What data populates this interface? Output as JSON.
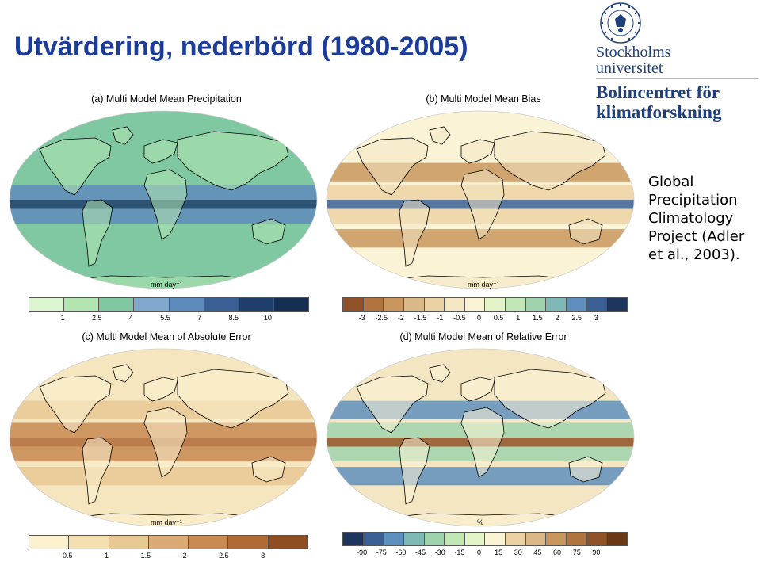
{
  "slide": {
    "title": "Utvärdering, nederbörd (1980-2005)",
    "note": "Global Precipitation Climatology Project (Adler et al., 2003)."
  },
  "logos": {
    "university_lines": [
      "Stockholms",
      "universitet"
    ],
    "center_lines": [
      "Bolincentret för",
      "klimatforskning"
    ],
    "seal_text": "UNIVERSITET STOCKHOLMS"
  },
  "panels": [
    {
      "id": "a",
      "title": "(a) Multi Model Mean Precipitation",
      "unit": "mm day⁻¹",
      "ticks": [
        "1",
        "2.5",
        "4",
        "5.5",
        "7",
        "8.5",
        "10"
      ],
      "colors": [
        "#ddf6d2",
        "#b2e5b0",
        "#7fc8a2",
        "#7fa8cc",
        "#5f8bbc",
        "#3a5f94",
        "#1e3f6c",
        "#152f52"
      ],
      "ocean": "#7fc8a2",
      "land": "#b2e5b0"
    },
    {
      "id": "b",
      "title": "(b) Multi Model Mean Bias",
      "unit": "mm day⁻¹",
      "ticks": [
        "-3",
        "-2.5",
        "-2",
        "-1.5",
        "-1",
        "-0.5",
        "0",
        "0.5",
        "1",
        "1.5",
        "2",
        "2.5",
        "3"
      ],
      "colors": [
        "#8e5128",
        "#b0753f",
        "#c9975e",
        "#dbb887",
        "#ebd2a4",
        "#f4e6c2",
        "#fbf3d6",
        "#e3f4c9",
        "#c2e7b6",
        "#9fd3ad",
        "#7fb9b6",
        "#5f8fbd",
        "#3a5f94",
        "#1d355c"
      ],
      "ocean": "#fbf3d6",
      "land": "#f4e6c2"
    },
    {
      "id": "c",
      "title": "(c) Multi Model Mean of Absolute Error",
      "unit": "mm day⁻¹",
      "ticks": [
        "0.5",
        "1",
        "1.5",
        "2",
        "2.5",
        "3"
      ],
      "colors": [
        "#fbf1cf",
        "#f3dfb0",
        "#e8c893",
        "#d9aa72",
        "#c88a52",
        "#b06a36",
        "#8e4e22"
      ],
      "ocean": "#f6e6bf",
      "land": "#fbf1cf"
    },
    {
      "id": "d",
      "title": "(d) Multi Model Mean of Relative Error",
      "unit": "%",
      "ticks": [
        "-90",
        "-75",
        "-60",
        "-45",
        "-30",
        "-15",
        "0",
        "15",
        "30",
        "45",
        "60",
        "75",
        "90"
      ],
      "colors": [
        "#1d355c",
        "#3a5f94",
        "#5f8fbd",
        "#7fb9b6",
        "#9fd3ad",
        "#c2e7b6",
        "#e3f4c9",
        "#fbf3d6",
        "#ebd2a4",
        "#dbb887",
        "#c9975e",
        "#b0753f",
        "#8e5128",
        "#6b3816"
      ],
      "ocean": "#f4e6c2",
      "land": "#fbf3d6"
    }
  ]
}
